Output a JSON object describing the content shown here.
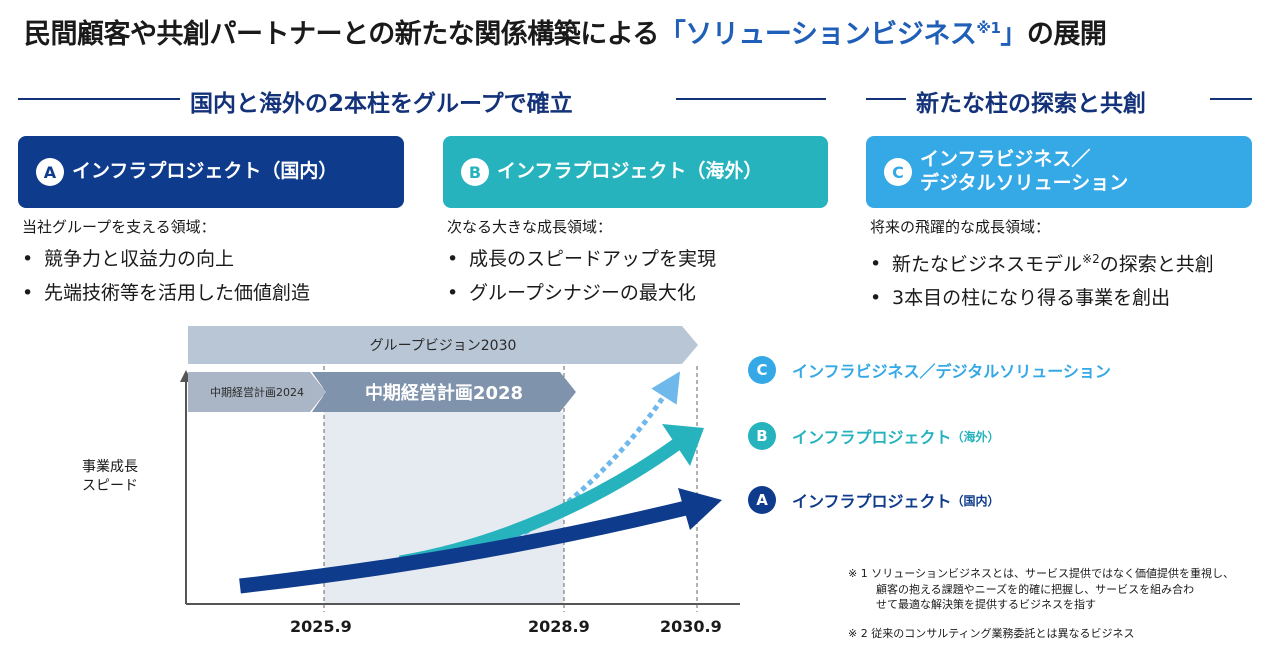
{
  "title": {
    "part1": "民間顧客や共創パートナーとの新たな関係構築による",
    "highlight": "「ソリューションビジネス",
    "highlight_sup": "※1",
    "highlight_end": "」",
    "part2": "の展開"
  },
  "section_left": {
    "heading": "国内と海外の2本柱をグループで確立"
  },
  "section_right": {
    "heading": "新たな柱の探索と共創"
  },
  "pillars": [
    {
      "badge": "A",
      "title": "インフラプロジェクト（国内）",
      "color": "#0f3b8c",
      "domain_label": "当社グループを支える領域：",
      "bullets": [
        "競争力と収益力の向上",
        "先端技術等を活用した価値創造"
      ]
    },
    {
      "badge": "B",
      "title": "インフラプロジェクト（海外）",
      "color": "#27b3bd",
      "domain_label": "次なる大きな成長領域：",
      "bullets": [
        "成長のスピードアップを実現",
        "グループシナジーの最大化"
      ]
    },
    {
      "badge": "C",
      "title_line1": "インフラビジネス／",
      "title_line2": "デジタルソリューション",
      "color": "#35a8e6",
      "domain_label": "将来の飛躍的な成長領域：",
      "bullet1_pre": "新たなビジネスモデル",
      "bullet1_sup": "※2",
      "bullet1_post": "の探索と共創",
      "bullet2": "3本目の柱になり得る事業を創出"
    }
  ],
  "timeline": {
    "vision_banner": "グループビジョン2030",
    "plan_2024": "中期経営計画2024",
    "plan_2028": "中期経営計画2028",
    "y_axis_line1": "事業成長",
    "y_axis_line2": "スピード",
    "ticks": [
      "2025.9",
      "2028.9",
      "2030.9"
    ]
  },
  "legend": [
    {
      "badge": "C",
      "label": "インフラビジネス／デジタルソリューション",
      "sub": "",
      "color": "#35a8e6"
    },
    {
      "badge": "B",
      "label": "インフラプロジェクト",
      "sub": "（海外）",
      "color": "#27b3bd"
    },
    {
      "badge": "A",
      "label": "インフラプロジェクト",
      "sub": "（国内）",
      "color": "#0f3b8c"
    }
  ],
  "notes": {
    "note1_line1": "※ 1 ソリューションビジネスとは、サービス提供ではなく価値提供を重視し、",
    "note1_line2": "顧客の抱える課題やニーズを的確に把握し、サービスを組み合わ",
    "note1_line3": "せて最適な解決策を提供するビジネスを指す",
    "note2": "※ 2 従来のコンサルティング業務委託とは異なるビジネス"
  },
  "colors": {
    "navy": "#13327a",
    "pillar_a": "#0f3b8c",
    "pillar_b": "#27b3bd",
    "pillar_c": "#35a8e6",
    "vision_banner": "#b9c6d6",
    "plan_2024": "#aab6c6",
    "plan_2028": "#7f93ac",
    "highlight": "#1f5fb8"
  }
}
